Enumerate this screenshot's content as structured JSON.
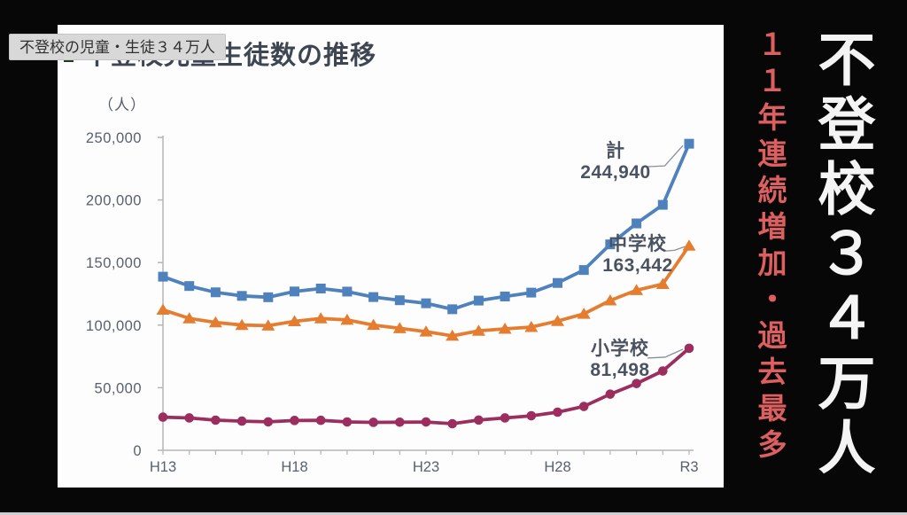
{
  "overlay_label": {
    "text": "不登校の児童・生徒３４万人"
  },
  "chart_card": {
    "title": "不登校児童生徒数の推移",
    "unit_label": "（人）"
  },
  "side_panel": {
    "subtitle": "１１年連続増加・過去最多",
    "title": "不登校３４万人",
    "subtitle_color": "#dd5f5f",
    "title_color": "#f4f4f4",
    "background": "#070707"
  },
  "chart_data": {
    "type": "line",
    "title": "不登校児童生徒数の推移",
    "ylabel": "（人）",
    "x": [
      "H13",
      "H14",
      "H15",
      "H16",
      "H17",
      "H18",
      "H19",
      "H20",
      "H21",
      "H22",
      "H23",
      "H24",
      "H25",
      "H26",
      "H27",
      "H28",
      "H29",
      "H30",
      "R1",
      "R2",
      "R3"
    ],
    "xtick_labels": [
      "H13",
      "H18",
      "H23",
      "H28",
      "R3"
    ],
    "ylim": [
      0,
      250000
    ],
    "yticks": [
      0,
      50000,
      100000,
      150000,
      200000,
      250000
    ],
    "ytick_labels": [
      "0",
      "50,000",
      "100,000",
      "150,000",
      "200,000",
      "250,000"
    ],
    "grid": false,
    "legend_position": "none",
    "series": [
      {
        "name": "計",
        "color": "#4f81bd",
        "marker": "square",
        "values": [
          138722,
          131252,
          126226,
          123358,
          122287,
          126894,
          129255,
          126805,
          122432,
          119891,
          117458,
          112689,
          119617,
          122897,
          125991,
          133683,
          144031,
          164528,
          181272,
          196127,
          244940
        ]
      },
      {
        "name": "中学校",
        "color": "#e57d30",
        "marker": "triangle",
        "values": [
          112211,
          105383,
          102149,
          100040,
          99578,
          103069,
          105328,
          104153,
          100105,
          97428,
          94836,
          91446,
          95442,
          97033,
          98408,
          103235,
          108999,
          119687,
          127922,
          132777,
          163442
        ]
      },
      {
        "name": "小学校",
        "color": "#9c2e5f",
        "marker": "circle",
        "values": [
          26511,
          25869,
          24077,
          23318,
          22709,
          23825,
          23927,
          22652,
          22327,
          22463,
          22622,
          21243,
          24175,
          25864,
          27583,
          30448,
          35032,
          44841,
          53350,
          63350,
          81498
        ]
      }
    ],
    "annotations": [
      {
        "series": "計",
        "label": "計",
        "value": "244,940"
      },
      {
        "series": "中学校",
        "label": "中学校",
        "value": "163,442"
      },
      {
        "series": "小学校",
        "label": "小学校",
        "value": "81,498"
      }
    ]
  }
}
